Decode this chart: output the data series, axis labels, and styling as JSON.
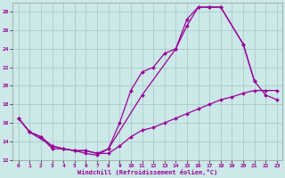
{
  "xlabel": "Windchill (Refroidissement éolien,°C)",
  "ylabel": "",
  "xlim": [
    -0.5,
    23.5
  ],
  "ylim": [
    12,
    29
  ],
  "xticks": [
    0,
    1,
    2,
    3,
    4,
    5,
    6,
    7,
    8,
    9,
    10,
    11,
    12,
    13,
    14,
    15,
    16,
    17,
    18,
    19,
    20,
    21,
    22,
    23
  ],
  "yticks": [
    12,
    14,
    16,
    18,
    20,
    22,
    24,
    26,
    28
  ],
  "background_color": "#cce8e8",
  "grid_color": "#aacccc",
  "line_color": "#990099",
  "series": [
    {
      "x": [
        0,
        1,
        2,
        3,
        4,
        5,
        6,
        7,
        8,
        9,
        10,
        11,
        12,
        13,
        14,
        15,
        16,
        17,
        18,
        20,
        21
      ],
      "y": [
        16.5,
        15.0,
        14.5,
        13.2,
        13.2,
        13.0,
        12.7,
        12.5,
        13.2,
        16.0,
        19.5,
        21.5,
        22.0,
        23.5,
        24.0,
        26.5,
        28.5,
        28.5,
        28.5,
        24.5,
        20.5
      ]
    },
    {
      "x": [
        0,
        1,
        3,
        4,
        5,
        6,
        7,
        8,
        11,
        14,
        15,
        16,
        17,
        18,
        20,
        21,
        22,
        23
      ],
      "y": [
        16.5,
        15.0,
        13.5,
        13.2,
        13.0,
        13.0,
        12.7,
        13.2,
        19.0,
        24.0,
        27.2,
        28.5,
        28.5,
        28.5,
        24.5,
        20.5,
        19.0,
        18.5
      ]
    },
    {
      "x": [
        0,
        1,
        2,
        3,
        4,
        5,
        6,
        7,
        8,
        9,
        10,
        11,
        12,
        13,
        14,
        15,
        16,
        17,
        18,
        19,
        20,
        21,
        22,
        23
      ],
      "y": [
        16.5,
        15.0,
        14.5,
        13.5,
        13.2,
        13.0,
        13.0,
        12.7,
        12.7,
        13.5,
        14.5,
        15.2,
        15.5,
        16.0,
        16.5,
        17.0,
        17.5,
        18.0,
        18.5,
        18.8,
        19.2,
        19.5,
        19.5,
        19.5
      ]
    }
  ]
}
